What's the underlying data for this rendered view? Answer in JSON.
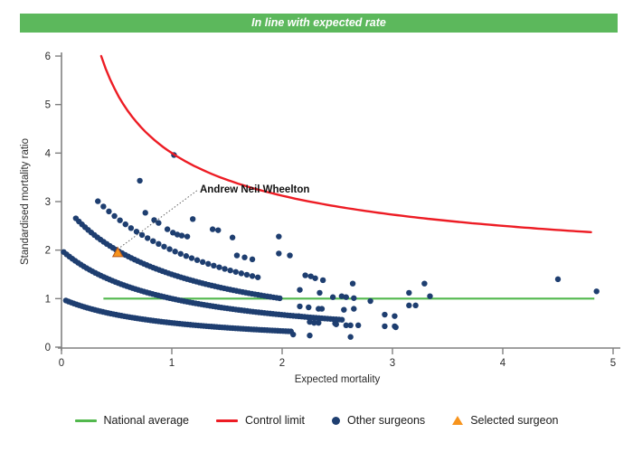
{
  "banner": {
    "text": "In line with expected rate",
    "bg_color": "#5cb85c",
    "text_color": "#ffffff"
  },
  "chart_data": {
    "type": "scatter",
    "title": "",
    "xlabel": "Expected mortality",
    "ylabel": "Standardised mortality ratio",
    "xlim": [
      0,
      5
    ],
    "ylim": [
      0,
      6
    ],
    "x_ticks": [
      0,
      1,
      2,
      3,
      4,
      5
    ],
    "y_ticks": [
      0,
      1,
      2,
      3,
      4,
      5,
      6
    ],
    "grid": false,
    "point_color": "#1e3e70",
    "axis_color": "#808080",
    "national_average": {
      "label": "National average",
      "y": 1.0,
      "x_start": 0.38,
      "x_end": 4.83,
      "color": "#52b84d"
    },
    "control_limit": {
      "label": "Control limit",
      "formula": "y = 1 + 3/sqrt(x)",
      "x_start": 0.36,
      "x_end": 4.83,
      "y_start": 6.0,
      "y_end": 2.37,
      "color": "#ed1c24"
    },
    "surgeon_bands": [
      {
        "name": "band-1-death",
        "k": 1,
        "formula": "y = 1/(1+x)",
        "x_start": 0.04,
        "x_end": 2.1,
        "step": 0.024
      },
      {
        "name": "band-2-deaths",
        "k": 2,
        "formula": "y = 2/(1+x)",
        "x_start": 0.02,
        "x_end": 2.55,
        "step": 0.026
      },
      {
        "name": "band-3-deaths",
        "k": 3,
        "formula": "y = 3/(1+x)",
        "x_start": 0.13,
        "x_end": 2.0,
        "step": 0.028
      },
      {
        "name": "band-4-deaths",
        "k": 4,
        "formula": "y = 4/(1+x)",
        "x_start": 0.33,
        "x_end": 1.8,
        "step": 0.05
      }
    ],
    "other_surgeons_points": [
      [
        0.71,
        3.43
      ],
      [
        1.02,
        3.96
      ],
      [
        0.76,
        2.77
      ],
      [
        0.84,
        2.62
      ],
      [
        0.88,
        2.56
      ],
      [
        0.96,
        2.43
      ],
      [
        1.01,
        2.36
      ],
      [
        1.05,
        2.32
      ],
      [
        1.09,
        2.3
      ],
      [
        1.14,
        2.28
      ],
      [
        1.19,
        2.64
      ],
      [
        1.37,
        2.43
      ],
      [
        1.42,
        2.41
      ],
      [
        1.55,
        2.26
      ],
      [
        1.59,
        1.89
      ],
      [
        1.66,
        1.85
      ],
      [
        1.73,
        1.81
      ],
      [
        1.97,
        2.28
      ],
      [
        1.97,
        1.93
      ],
      [
        2.07,
        1.89
      ],
      [
        2.16,
        1.18
      ],
      [
        2.21,
        1.48
      ],
      [
        2.26,
        1.46
      ],
      [
        2.3,
        1.42
      ],
      [
        2.37,
        1.38
      ],
      [
        2.34,
        1.12
      ],
      [
        2.16,
        0.84
      ],
      [
        2.24,
        0.82
      ],
      [
        2.33,
        0.79
      ],
      [
        2.36,
        0.79
      ],
      [
        2.15,
        0.64
      ],
      [
        2.25,
        0.52
      ],
      [
        2.29,
        0.5
      ],
      [
        2.33,
        0.5
      ],
      [
        2.25,
        0.24
      ],
      [
        2.1,
        0.26
      ],
      [
        2.48,
        0.49
      ],
      [
        2.49,
        0.47
      ],
      [
        2.46,
        1.03
      ],
      [
        2.54,
        1.05
      ],
      [
        2.58,
        1.03
      ],
      [
        2.65,
        1.01
      ],
      [
        2.64,
        1.31
      ],
      [
        2.56,
        0.77
      ],
      [
        2.65,
        0.79
      ],
      [
        2.58,
        0.45
      ],
      [
        2.62,
        0.45
      ],
      [
        2.69,
        0.45
      ],
      [
        2.62,
        0.21
      ],
      [
        2.8,
        0.95
      ],
      [
        2.93,
        0.67
      ],
      [
        3.02,
        0.64
      ],
      [
        2.93,
        0.43
      ],
      [
        3.02,
        0.43
      ],
      [
        3.03,
        0.41
      ],
      [
        3.15,
        1.12
      ],
      [
        3.15,
        0.86
      ],
      [
        3.21,
        0.86
      ],
      [
        3.29,
        1.31
      ],
      [
        3.34,
        1.05
      ],
      [
        4.5,
        1.4
      ],
      [
        4.85,
        1.15
      ]
    ],
    "selected_surgeon": {
      "label": "Andrew Neil Wheelton",
      "x": 0.51,
      "y": 1.95,
      "fill_color": "#f7941d",
      "stroke_color": "#b4561c"
    }
  },
  "legend": {
    "items": [
      {
        "swatch": "line",
        "color": "#52b84d",
        "label": "National average"
      },
      {
        "swatch": "line",
        "color": "#ed1c24",
        "label": "Control limit"
      },
      {
        "swatch": "dot",
        "color": "#1e3e70",
        "label": "Other surgeons"
      },
      {
        "swatch": "triangle",
        "color": "#f7941d",
        "label": "Selected surgeon"
      }
    ]
  }
}
